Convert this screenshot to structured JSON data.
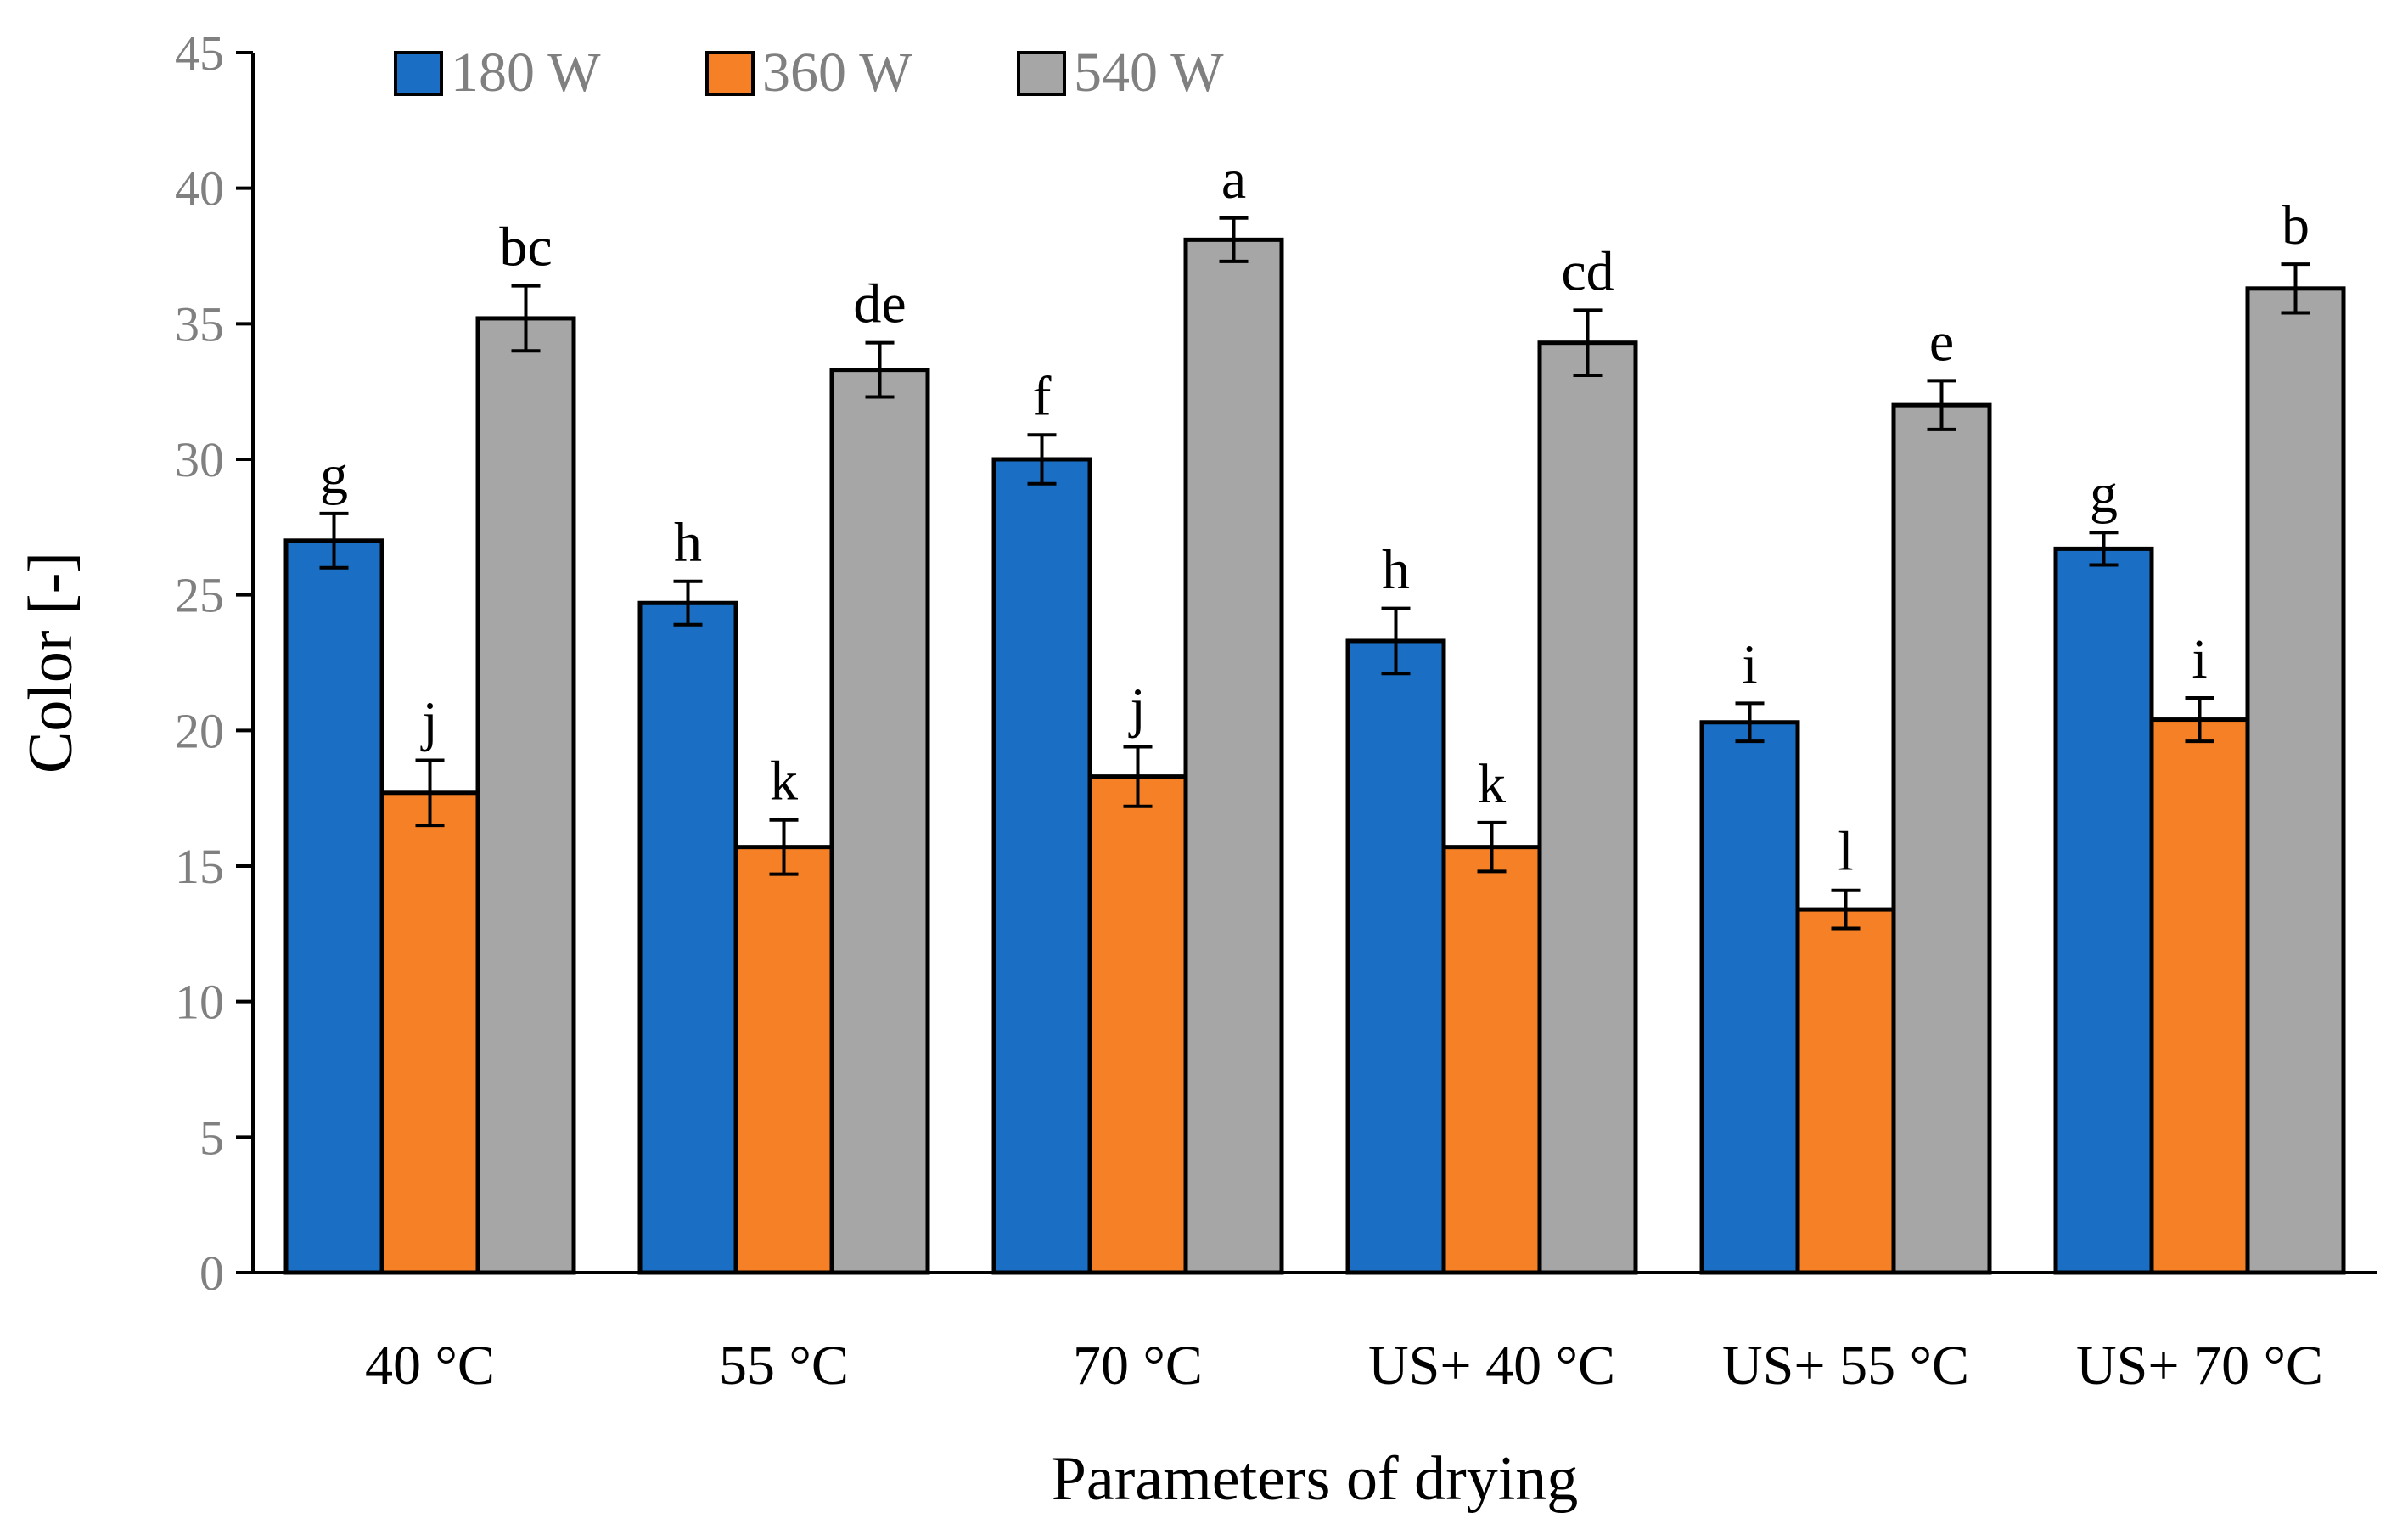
{
  "chart_data": {
    "type": "bar",
    "title": "",
    "xlabel": "Parameters of drying",
    "ylabel": "Color [-]",
    "ylim": [
      0,
      45
    ],
    "yticks": [
      "0",
      "5",
      "10",
      "15",
      "20",
      "25",
      "30",
      "35",
      "40",
      "45"
    ],
    "grid": false,
    "legend_position": "top-left",
    "categories": [
      "40 °C",
      "55 °C",
      "70 °C",
      "US+ 40 °C",
      "US+ 55 °C",
      "US+ 70 °C"
    ],
    "series": [
      {
        "name": "180 W",
        "color": "#1a6fc4",
        "values": [
          27.0,
          24.7,
          30.0,
          23.3,
          20.3,
          26.7
        ],
        "errors": [
          1.0,
          0.8,
          0.9,
          1.2,
          0.7,
          0.6
        ],
        "labels": [
          "g",
          "h",
          "f",
          "h",
          "i",
          "g"
        ]
      },
      {
        "name": "360 W",
        "color": "#f58025",
        "values": [
          17.7,
          15.7,
          18.3,
          15.7,
          13.4,
          20.4
        ],
        "errors": [
          1.2,
          1.0,
          1.1,
          0.9,
          0.7,
          0.8
        ],
        "labels": [
          "j",
          "k",
          "j",
          "k",
          "l",
          "i"
        ]
      },
      {
        "name": "540 W",
        "color": "#a6a6a6",
        "values": [
          35.2,
          33.3,
          38.1,
          34.3,
          32.0,
          36.3
        ],
        "errors": [
          1.2,
          1.0,
          0.8,
          1.2,
          0.9,
          0.9
        ],
        "labels": [
          "bc",
          "de",
          "a",
          "cd",
          "e",
          "b"
        ]
      }
    ]
  }
}
